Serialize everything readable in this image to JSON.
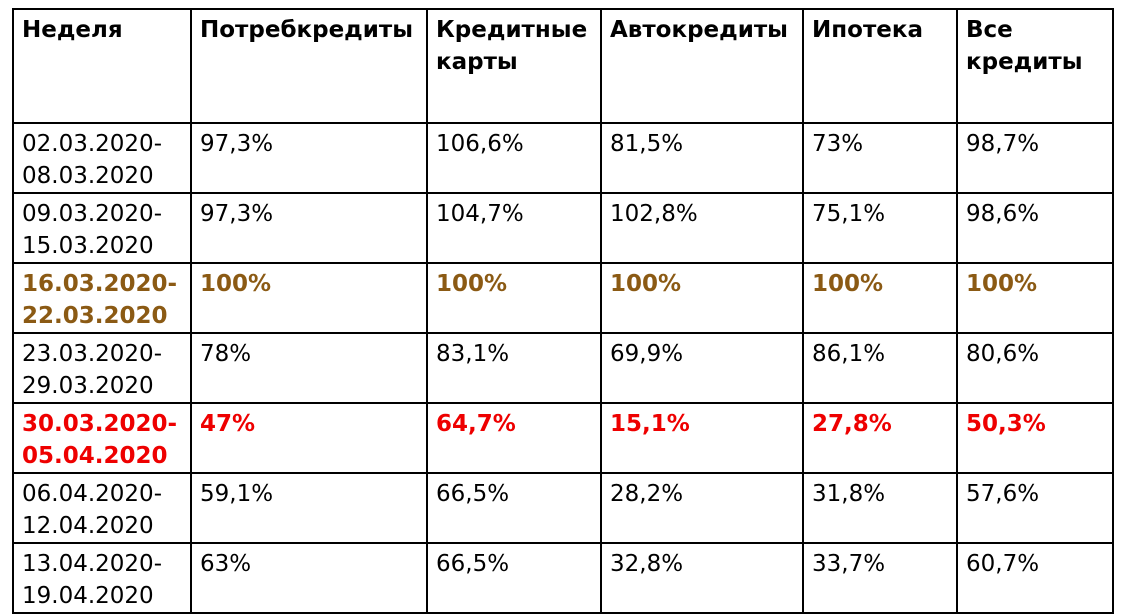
{
  "colors": {
    "text": "#000000",
    "baseline_highlight": "#8B5A14",
    "drop_highlight": "#EE0000",
    "border": "#000000"
  },
  "headers": [
    "Неделя",
    "Потребкредиты",
    "Кредитные карты",
    "Автокредиты",
    "Ипотека",
    "Все кредиты"
  ],
  "rows": [
    {
      "week": "02.03.2020-\n08.03.2020",
      "values": [
        "97,3%",
        "106,6%",
        "81,5%",
        "73%",
        "98,7%"
      ],
      "style": "normal"
    },
    {
      "week": "09.03.2020-\n15.03.2020",
      "values": [
        "97,3%",
        "104,7%",
        "102,8%",
        "75,1%",
        "98,6%"
      ],
      "style": "normal"
    },
    {
      "week": "16.03.2020-\n22.03.2020",
      "values": [
        "100%",
        "100%",
        "100%",
        "100%",
        "100%"
      ],
      "style": "baseline"
    },
    {
      "week": "23.03.2020-\n29.03.2020",
      "values": [
        "78%",
        "83,1%",
        "69,9%",
        "86,1%",
        "80,6%"
      ],
      "style": "normal"
    },
    {
      "week": "30.03.2020-\n05.04.2020",
      "values": [
        "47%",
        "64,7%",
        "15,1%",
        "27,8%",
        "50,3%"
      ],
      "style": "drop"
    },
    {
      "week": "06.04.2020-\n12.04.2020",
      "values": [
        "59,1%",
        "66,5%",
        "28,2%",
        "31,8%",
        "57,6%"
      ],
      "style": "normal"
    },
    {
      "week": "13.04.2020-\n19.04.2020",
      "values": [
        "63%",
        "66,5%",
        "32,8%",
        "33,7%",
        "60,7%"
      ],
      "style": "normal"
    }
  ]
}
